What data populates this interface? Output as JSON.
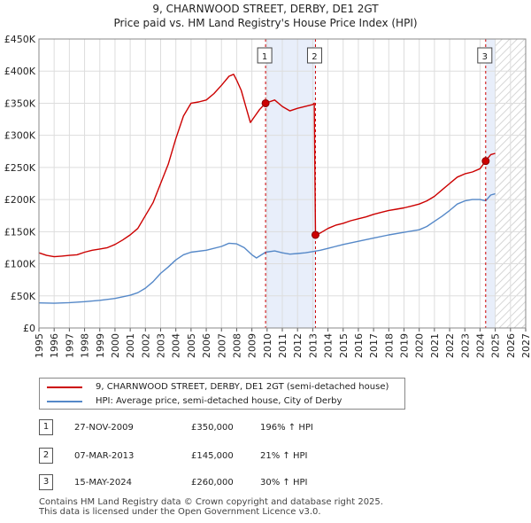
{
  "chart_data": {
    "type": "line",
    "title": "9, CHARNWOOD STREET, DERBY, DE1 2GT",
    "subtitle": "Price paid vs. HM Land Registry's House Price Index (HPI)",
    "xlim": [
      1995,
      2027
    ],
    "ylim": [
      0,
      450000
    ],
    "y_ticks": [
      {
        "value": 0,
        "label": "£0"
      },
      {
        "value": 50000,
        "label": "£50K"
      },
      {
        "value": 100000,
        "label": "£100K"
      },
      {
        "value": 150000,
        "label": "£150K"
      },
      {
        "value": 200000,
        "label": "£200K"
      },
      {
        "value": 250000,
        "label": "£250K"
      },
      {
        "value": 300000,
        "label": "£300K"
      },
      {
        "value": 350000,
        "label": "£350K"
      },
      {
        "value": 400000,
        "label": "£400K"
      },
      {
        "value": 450000,
        "label": "£450K"
      }
    ],
    "x_ticks": [
      "1995",
      "1996",
      "1997",
      "1998",
      "1999",
      "2000",
      "2001",
      "2002",
      "2003",
      "2004",
      "2005",
      "2006",
      "2007",
      "2008",
      "2009",
      "2010",
      "2011",
      "2012",
      "2013",
      "2014",
      "2015",
      "2016",
      "2017",
      "2018",
      "2019",
      "2020",
      "2021",
      "2022",
      "2023",
      "2024",
      "2025",
      "2026",
      "2027"
    ],
    "shaded_ranges": [
      {
        "from": 2009.9,
        "to": 2013.18,
        "color": "#e8eefa"
      },
      {
        "from": 2024.37,
        "to": 2025.0,
        "color": "#e8eefa"
      }
    ],
    "future_hatch_from": 2025.0,
    "series": [
      {
        "name": "9, CHARNWOOD STREET, DERBY, DE1 2GT (semi-detached house)",
        "color": "#cc0000",
        "points": [
          [
            1995.0,
            117000
          ],
          [
            1995.5,
            113000
          ],
          [
            1996.0,
            111000
          ],
          [
            1996.5,
            112000
          ],
          [
            1997.0,
            113000
          ],
          [
            1997.5,
            114000
          ],
          [
            1998.0,
            118000
          ],
          [
            1998.5,
            121000
          ],
          [
            1999.0,
            123000
          ],
          [
            1999.5,
            125000
          ],
          [
            2000.0,
            130000
          ],
          [
            2000.5,
            137000
          ],
          [
            2001.0,
            145000
          ],
          [
            2001.5,
            155000
          ],
          [
            2002.0,
            175000
          ],
          [
            2002.5,
            195000
          ],
          [
            2003.0,
            225000
          ],
          [
            2003.5,
            255000
          ],
          [
            2004.0,
            295000
          ],
          [
            2004.5,
            330000
          ],
          [
            2005.0,
            350000
          ],
          [
            2005.5,
            352000
          ],
          [
            2006.0,
            355000
          ],
          [
            2006.5,
            365000
          ],
          [
            2007.0,
            378000
          ],
          [
            2007.5,
            392000
          ],
          [
            2007.8,
            395000
          ],
          [
            2008.0,
            386000
          ],
          [
            2008.3,
            370000
          ],
          [
            2008.6,
            345000
          ],
          [
            2008.9,
            320000
          ],
          [
            2009.2,
            330000
          ],
          [
            2009.5,
            340000
          ],
          [
            2009.9,
            350000
          ],
          [
            2010.5,
            355000
          ],
          [
            2011.0,
            345000
          ],
          [
            2011.5,
            338000
          ],
          [
            2012.0,
            342000
          ],
          [
            2012.5,
            345000
          ],
          [
            2013.0,
            348000
          ],
          [
            2013.1,
            350000
          ],
          [
            2013.18,
            145000
          ],
          [
            2013.5,
            148000
          ],
          [
            2014.0,
            155000
          ],
          [
            2014.5,
            160000
          ],
          [
            2015.0,
            163000
          ],
          [
            2015.5,
            167000
          ],
          [
            2016.0,
            170000
          ],
          [
            2016.5,
            173000
          ],
          [
            2017.0,
            177000
          ],
          [
            2017.5,
            180000
          ],
          [
            2018.0,
            183000
          ],
          [
            2018.5,
            185000
          ],
          [
            2019.0,
            187000
          ],
          [
            2019.5,
            190000
          ],
          [
            2020.0,
            193000
          ],
          [
            2020.5,
            198000
          ],
          [
            2021.0,
            205000
          ],
          [
            2021.5,
            215000
          ],
          [
            2022.0,
            225000
          ],
          [
            2022.5,
            235000
          ],
          [
            2023.0,
            240000
          ],
          [
            2023.5,
            243000
          ],
          [
            2024.0,
            248000
          ],
          [
            2024.37,
            260000
          ],
          [
            2024.7,
            270000
          ],
          [
            2025.0,
            272000
          ]
        ]
      },
      {
        "name": "HPI: Average price, semi-detached house, City of Derby",
        "color": "#5588c8",
        "points": [
          [
            1995.0,
            39000
          ],
          [
            1996.0,
            38500
          ],
          [
            1997.0,
            39500
          ],
          [
            1998.0,
            41000
          ],
          [
            1999.0,
            43000
          ],
          [
            2000.0,
            46000
          ],
          [
            2001.0,
            51000
          ],
          [
            2001.5,
            55000
          ],
          [
            2002.0,
            62000
          ],
          [
            2002.5,
            72000
          ],
          [
            2003.0,
            85000
          ],
          [
            2003.5,
            95000
          ],
          [
            2004.0,
            106000
          ],
          [
            2004.5,
            114000
          ],
          [
            2005.0,
            118000
          ],
          [
            2006.0,
            121000
          ],
          [
            2007.0,
            127000
          ],
          [
            2007.5,
            132000
          ],
          [
            2008.0,
            131000
          ],
          [
            2008.5,
            125000
          ],
          [
            2009.0,
            114000
          ],
          [
            2009.3,
            109000
          ],
          [
            2009.9,
            118000
          ],
          [
            2010.5,
            120000
          ],
          [
            2011.0,
            117000
          ],
          [
            2011.5,
            115000
          ],
          [
            2012.0,
            116000
          ],
          [
            2012.5,
            117000
          ],
          [
            2013.0,
            119000
          ],
          [
            2013.5,
            121000
          ],
          [
            2014.0,
            124000
          ],
          [
            2014.5,
            127000
          ],
          [
            2015.0,
            130000
          ],
          [
            2016.0,
            135000
          ],
          [
            2017.0,
            140000
          ],
          [
            2018.0,
            145000
          ],
          [
            2019.0,
            149000
          ],
          [
            2020.0,
            153000
          ],
          [
            2020.5,
            158000
          ],
          [
            2021.0,
            166000
          ],
          [
            2021.5,
            174000
          ],
          [
            2022.0,
            183000
          ],
          [
            2022.5,
            193000
          ],
          [
            2023.0,
            198000
          ],
          [
            2023.5,
            200000
          ],
          [
            2024.0,
            200000
          ],
          [
            2024.37,
            198000
          ],
          [
            2024.7,
            207000
          ],
          [
            2025.0,
            209000
          ]
        ]
      }
    ],
    "sales": [
      {
        "num": "1",
        "x": 2009.9,
        "price": 350000,
        "date": "27-NOV-2009",
        "price_label": "£350,000",
        "hpi": "196% ↑ HPI"
      },
      {
        "num": "2",
        "x": 2013.18,
        "price": 145000,
        "date": "07-MAR-2013",
        "price_label": "£145,000",
        "hpi": "21% ↑ HPI"
      },
      {
        "num": "3",
        "x": 2024.37,
        "price": 260000,
        "date": "15-MAY-2024",
        "price_label": "£260,000",
        "hpi": "30% ↑ HPI"
      }
    ]
  },
  "footer": {
    "line1": "Contains HM Land Registry data © Crown copyright and database right 2025.",
    "line2": "This data is licensed under the Open Government Licence v3.0."
  }
}
